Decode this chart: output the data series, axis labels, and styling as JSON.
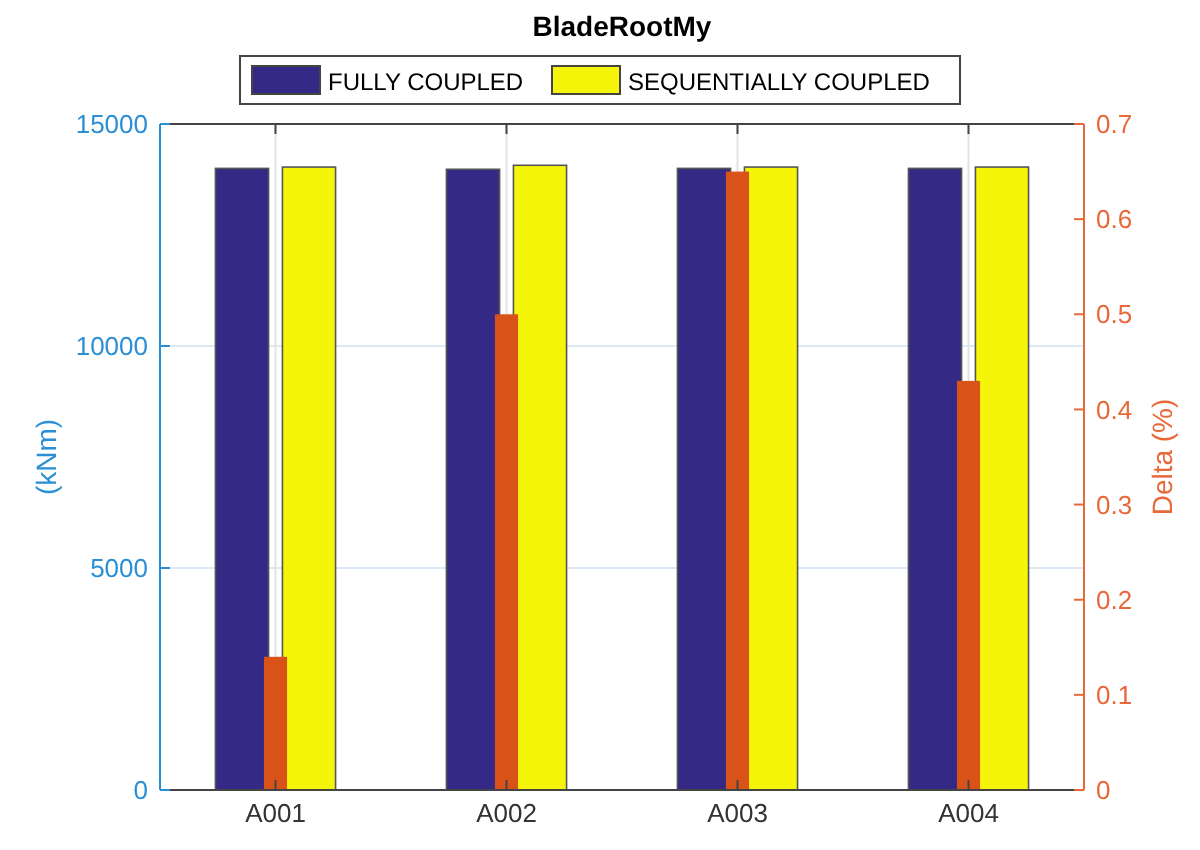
{
  "chart_data": {
    "type": "bar",
    "title": "BladeRootMy",
    "ylabel": "(kNm)",
    "y2label": "Delta (%)",
    "categories": [
      "A001",
      "A002",
      "A003",
      "A004"
    ],
    "series": [
      {
        "name": "FULLY COUPLED",
        "color": "#342a85",
        "values": [
          14000,
          13980,
          14000,
          14000
        ]
      },
      {
        "name": "SEQUENTIALLY COUPLED",
        "color": "#f5f50a",
        "values": [
          14030,
          14070,
          14030,
          14030
        ]
      },
      {
        "type": "bar",
        "axis": "y2",
        "color": "#d95319",
        "values": [
          0.14,
          0.5,
          0.65,
          0.43
        ]
      }
    ],
    "ylim": [
      0,
      15000
    ],
    "yticks": [
      0,
      5000,
      10000,
      15000
    ],
    "y2lim": [
      0,
      0.7
    ],
    "y2ticks": [
      0,
      0.1,
      0.2,
      0.3,
      0.4,
      0.5,
      0.6,
      0.7
    ],
    "grid": true,
    "legend": "top"
  }
}
